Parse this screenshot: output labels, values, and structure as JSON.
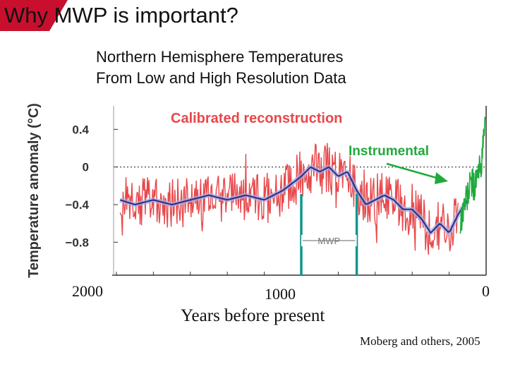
{
  "slide": {
    "title": "Why MWP is important?",
    "subtitle_line1": "Northern Hemisphere Temperatures",
    "subtitle_line2": "From Low and High Resolution Data",
    "credit": "Moberg and others, 2005",
    "accent_color": "#c8102e"
  },
  "chart_data": {
    "type": "line",
    "title": "Calibrated reconstruction",
    "ylabel": "Temperature anomaly (°C)",
    "xlabel": "Years before present",
    "xlim": [
      2000,
      0
    ],
    "ylim": [
      -1.15,
      0.65
    ],
    "x_ticks": [
      "2000",
      "1000",
      "0"
    ],
    "y_ticks": [
      "0.4",
      "0",
      "-0.4",
      "-0.8"
    ],
    "zero_line": "dotted",
    "annotations": {
      "instrumental": "Instrumental",
      "mwp": "MWP",
      "mwp_start": 1000,
      "mwp_end": 700
    },
    "colors": {
      "reconstruction": "#e8474a",
      "smoothed": "#2e3192",
      "instrumental": "#1faa3c",
      "mwp_markers": "#13968f"
    },
    "series": [
      {
        "name": "Calibrated reconstruction",
        "x": [
          1980,
          1900,
          1800,
          1700,
          1600,
          1500,
          1400,
          1300,
          1200,
          1100,
          1000,
          950,
          900,
          850,
          800,
          750,
          700,
          650,
          600,
          550,
          500,
          450,
          400,
          350,
          300,
          250,
          200,
          150,
          100
        ],
        "values": [
          -0.35,
          -0.4,
          -0.35,
          -0.4,
          -0.35,
          -0.3,
          -0.35,
          -0.3,
          -0.35,
          -0.25,
          -0.1,
          0.0,
          -0.05,
          0.0,
          -0.1,
          -0.05,
          -0.25,
          -0.4,
          -0.35,
          -0.3,
          -0.35,
          -0.45,
          -0.45,
          -0.55,
          -0.7,
          -0.6,
          -0.7,
          -0.5,
          -0.35
        ]
      },
      {
        "name": "Instrumental",
        "x": [
          140,
          120,
          100,
          80,
          60,
          40,
          20,
          5
        ],
        "values": [
          -0.6,
          -0.4,
          -0.3,
          -0.15,
          -0.2,
          -0.05,
          0.1,
          0.6
        ]
      }
    ]
  }
}
